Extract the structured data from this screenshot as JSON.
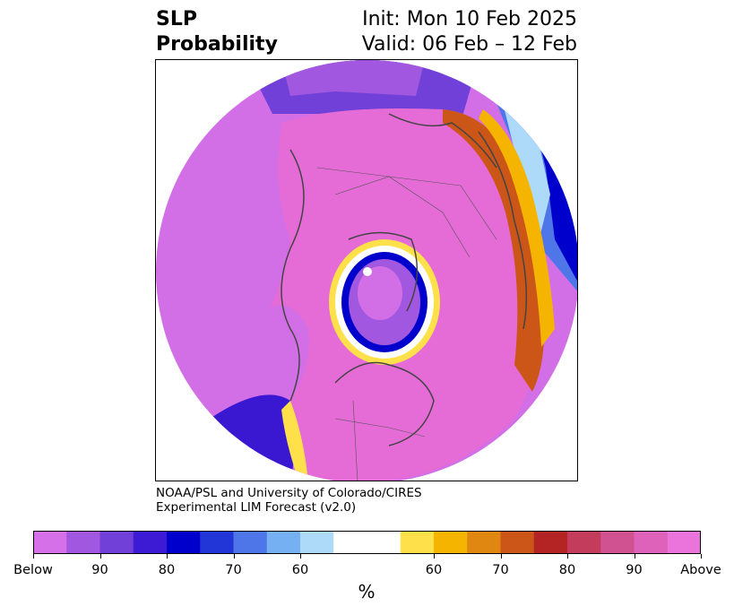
{
  "title": {
    "variable": "SLP",
    "product": "Probability",
    "init": "Init: Mon 10 Feb 2025",
    "valid": "Valid: 06 Feb – 12 Feb"
  },
  "credit": {
    "line1": "NOAA/PSL and University of Colorado/CIRES",
    "line2": "Experimental LIM Forecast (v2.0)"
  },
  "colorbar": {
    "unit": "%",
    "colors": [
      "#d670e8",
      "#a257e0",
      "#7040d8",
      "#3d1ad4",
      "#0000cc",
      "#2236d8",
      "#4e76e8",
      "#74b0f2",
      "#acdaf8",
      "#ffffff",
      "#ffffff",
      "#fee14a",
      "#f4b400",
      "#e08712",
      "#cc5518",
      "#b42424",
      "#c43c5c",
      "#d05290",
      "#de62ba",
      "#ea74dc"
    ],
    "tick_labels": [
      "Below",
      "90",
      "80",
      "70",
      "60",
      "60",
      "70",
      "80",
      "90",
      "Above"
    ]
  },
  "map": {
    "projection": "north-polar-stereographic",
    "palette": {
      "above": "#e56bd6",
      "below": "#d36fe6",
      "deep_below": "#3a18d2",
      "ocean_blue": "#0000cc"
    }
  }
}
